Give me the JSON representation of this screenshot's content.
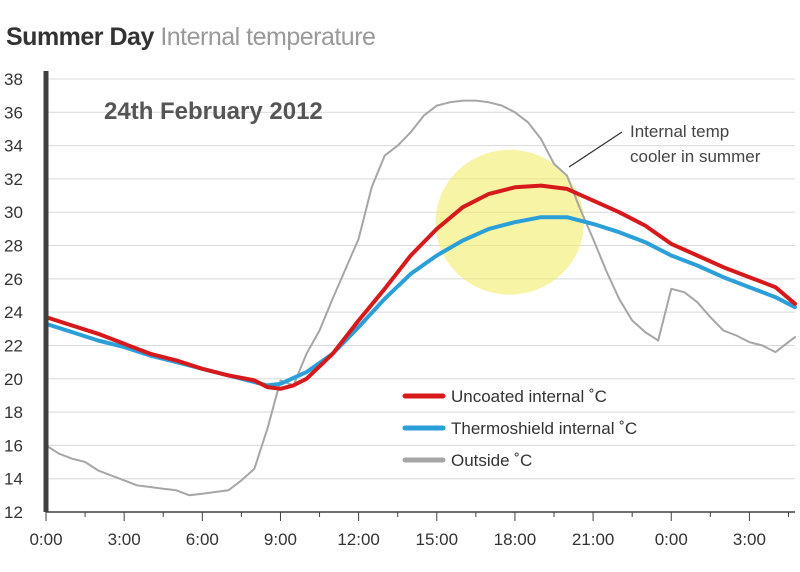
{
  "page": {
    "title_main": "Summer Day",
    "title_sub": "Internal temperature"
  },
  "chart_data": {
    "type": "line",
    "date_label": "24th February 2012",
    "annotation": [
      "Internal temp",
      "cooler in summer"
    ],
    "xlabel": "",
    "ylabel": "",
    "xlim": [
      0,
      28.75
    ],
    "ylim": [
      12,
      38
    ],
    "x_ticks": [
      0,
      3,
      6,
      9,
      12,
      15,
      18,
      21,
      24,
      27
    ],
    "x_tick_labels": [
      "0:00",
      "3:00",
      "6:00",
      "9:00",
      "12:00",
      "15:00",
      "18:00",
      "21:00",
      "0:00",
      "3:00"
    ],
    "y_ticks": [
      12,
      14,
      16,
      18,
      20,
      22,
      24,
      26,
      28,
      30,
      32,
      34,
      36,
      38
    ],
    "grid": "horizontal",
    "legend_position": "lower-right",
    "highlight": {
      "x_center": 17.8,
      "y_center": 29.4,
      "x_radius": 2.85,
      "y_radius": 4.35,
      "color": "#f4ec6a",
      "opacity": 0.6
    },
    "series": [
      {
        "name": "Uncoated internal ˚C",
        "color": "#d7191c",
        "points": [
          [
            0,
            23.7
          ],
          [
            1,
            23.2
          ],
          [
            2,
            22.7
          ],
          [
            3,
            22.1
          ],
          [
            4,
            21.5
          ],
          [
            5,
            21.1
          ],
          [
            6,
            20.6
          ],
          [
            7,
            20.2
          ],
          [
            8,
            19.9
          ],
          [
            8.5,
            19.5
          ],
          [
            9,
            19.4
          ],
          [
            9.5,
            19.6
          ],
          [
            10,
            20.0
          ],
          [
            11,
            21.5
          ],
          [
            12,
            23.5
          ],
          [
            13,
            25.4
          ],
          [
            14,
            27.4
          ],
          [
            15,
            29.0
          ],
          [
            16,
            30.3
          ],
          [
            17,
            31.1
          ],
          [
            18,
            31.5
          ],
          [
            19,
            31.6
          ],
          [
            20,
            31.4
          ],
          [
            21,
            30.7
          ],
          [
            22,
            30.0
          ],
          [
            23,
            29.2
          ],
          [
            24,
            28.1
          ],
          [
            25,
            27.4
          ],
          [
            26,
            26.7
          ],
          [
            27,
            26.1
          ],
          [
            28,
            25.5
          ],
          [
            28.75,
            24.5
          ]
        ]
      },
      {
        "name": "Thermoshield internal ˚C",
        "color": "#2b9fd8",
        "points": [
          [
            0,
            23.3
          ],
          [
            1,
            22.8
          ],
          [
            2,
            22.3
          ],
          [
            3,
            21.9
          ],
          [
            4,
            21.4
          ],
          [
            5,
            21.0
          ],
          [
            6,
            20.6
          ],
          [
            7,
            20.2
          ],
          [
            8,
            19.8
          ],
          [
            8.5,
            19.6
          ],
          [
            9,
            19.7
          ],
          [
            10,
            20.4
          ],
          [
            11,
            21.5
          ],
          [
            12,
            23.1
          ],
          [
            13,
            24.8
          ],
          [
            14,
            26.3
          ],
          [
            15,
            27.4
          ],
          [
            16,
            28.3
          ],
          [
            17,
            29.0
          ],
          [
            18,
            29.4
          ],
          [
            19,
            29.7
          ],
          [
            20,
            29.7
          ],
          [
            21,
            29.3
          ],
          [
            22,
            28.8
          ],
          [
            23,
            28.2
          ],
          [
            24,
            27.4
          ],
          [
            25,
            26.8
          ],
          [
            26,
            26.1
          ],
          [
            27,
            25.5
          ],
          [
            28,
            24.9
          ],
          [
            28.75,
            24.3
          ]
        ]
      },
      {
        "name": "Outside ˚C",
        "color": "#a6a6a6",
        "points": [
          [
            0,
            16.0
          ],
          [
            0.5,
            15.5
          ],
          [
            1,
            15.2
          ],
          [
            1.5,
            15.0
          ],
          [
            2,
            14.5
          ],
          [
            2.5,
            14.2
          ],
          [
            3,
            13.9
          ],
          [
            3.5,
            13.6
          ],
          [
            4,
            13.5
          ],
          [
            4.5,
            13.4
          ],
          [
            5,
            13.3
          ],
          [
            5.5,
            13.0
          ],
          [
            6,
            13.1
          ],
          [
            6.5,
            13.2
          ],
          [
            7,
            13.3
          ],
          [
            7.5,
            13.9
          ],
          [
            8,
            14.6
          ],
          [
            8.5,
            17.0
          ],
          [
            9,
            19.9
          ],
          [
            9.5,
            19.6
          ],
          [
            10,
            21.5
          ],
          [
            10.5,
            22.9
          ],
          [
            11,
            24.8
          ],
          [
            11.5,
            26.6
          ],
          [
            12,
            28.4
          ],
          [
            12.5,
            31.5
          ],
          [
            13,
            33.4
          ],
          [
            13.5,
            34.0
          ],
          [
            14,
            34.8
          ],
          [
            14.5,
            35.8
          ],
          [
            15,
            36.4
          ],
          [
            15.5,
            36.6
          ],
          [
            16,
            36.7
          ],
          [
            16.5,
            36.7
          ],
          [
            17,
            36.6
          ],
          [
            17.5,
            36.4
          ],
          [
            18,
            36.0
          ],
          [
            18.5,
            35.4
          ],
          [
            19,
            34.4
          ],
          [
            19.5,
            32.9
          ],
          [
            20,
            32.2
          ],
          [
            20.5,
            30.2
          ],
          [
            21,
            28.4
          ],
          [
            21.5,
            26.5
          ],
          [
            22,
            24.8
          ],
          [
            22.5,
            23.5
          ],
          [
            23,
            22.8
          ],
          [
            23.5,
            22.3
          ],
          [
            24,
            25.4
          ],
          [
            24.5,
            25.2
          ],
          [
            25,
            24.6
          ],
          [
            25.5,
            23.7
          ],
          [
            26,
            22.9
          ],
          [
            26.5,
            22.6
          ],
          [
            27,
            22.2
          ],
          [
            27.5,
            22.0
          ],
          [
            28,
            21.6
          ],
          [
            28.75,
            22.5
          ]
        ]
      }
    ]
  }
}
